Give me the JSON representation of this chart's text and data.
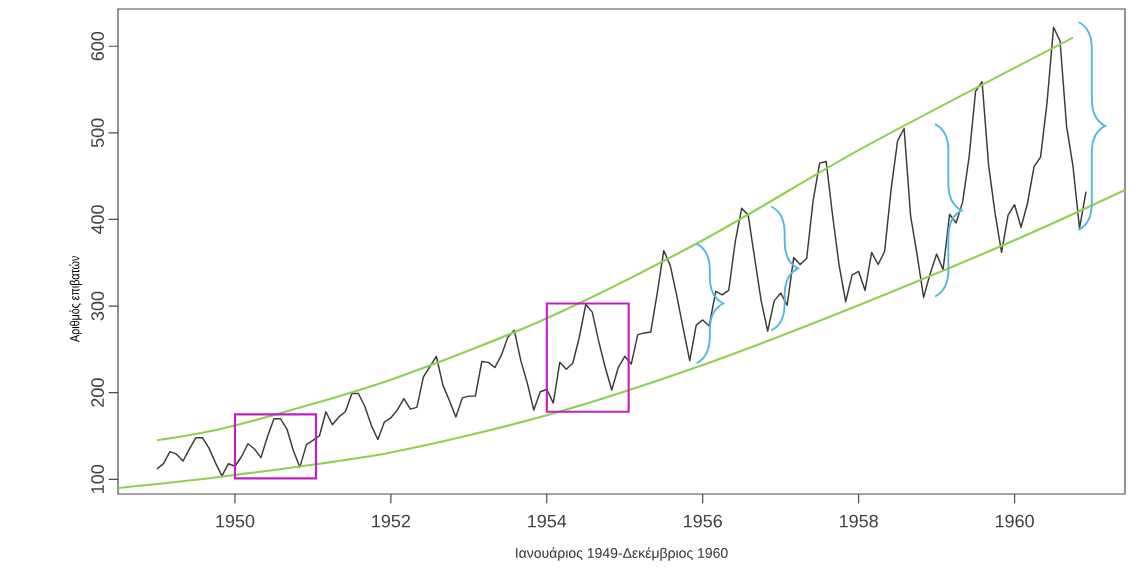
{
  "chart_data": {
    "type": "line",
    "xlabel": "Ιανουάριος 1949-Δεκέμβριος 1960",
    "ylabel": "Αριθμός επιβατών",
    "x": [
      "1949-01",
      "1949-02",
      "1949-03",
      "1949-04",
      "1949-05",
      "1949-06",
      "1949-07",
      "1949-08",
      "1949-09",
      "1949-10",
      "1949-11",
      "1949-12",
      "1950-01",
      "1950-02",
      "1950-03",
      "1950-04",
      "1950-05",
      "1950-06",
      "1950-07",
      "1950-08",
      "1950-09",
      "1950-10",
      "1950-11",
      "1950-12",
      "1951-01",
      "1951-02",
      "1951-03",
      "1951-04",
      "1951-05",
      "1951-06",
      "1951-07",
      "1951-08",
      "1951-09",
      "1951-10",
      "1951-11",
      "1951-12",
      "1952-01",
      "1952-02",
      "1952-03",
      "1952-04",
      "1952-05",
      "1952-06",
      "1952-07",
      "1952-08",
      "1952-09",
      "1952-10",
      "1952-11",
      "1952-12",
      "1953-01",
      "1953-02",
      "1953-03",
      "1953-04",
      "1953-05",
      "1953-06",
      "1953-07",
      "1953-08",
      "1953-09",
      "1953-10",
      "1953-11",
      "1953-12",
      "1954-01",
      "1954-02",
      "1954-03",
      "1954-04",
      "1954-05",
      "1954-06",
      "1954-07",
      "1954-08",
      "1954-09",
      "1954-10",
      "1954-11",
      "1954-12",
      "1955-01",
      "1955-02",
      "1955-03",
      "1955-04",
      "1955-05",
      "1955-06",
      "1955-07",
      "1955-08",
      "1955-09",
      "1955-10",
      "1955-11",
      "1955-12",
      "1956-01",
      "1956-02",
      "1956-03",
      "1956-04",
      "1956-05",
      "1956-06",
      "1956-07",
      "1956-08",
      "1956-09",
      "1956-10",
      "1956-11",
      "1956-12",
      "1957-01",
      "1957-02",
      "1957-03",
      "1957-04",
      "1957-05",
      "1957-06",
      "1957-07",
      "1957-08",
      "1957-09",
      "1957-10",
      "1957-11",
      "1957-12",
      "1958-01",
      "1958-02",
      "1958-03",
      "1958-04",
      "1958-05",
      "1958-06",
      "1958-07",
      "1958-08",
      "1958-09",
      "1958-10",
      "1958-11",
      "1958-12",
      "1959-01",
      "1959-02",
      "1959-03",
      "1959-04",
      "1959-05",
      "1959-06",
      "1959-07",
      "1959-08",
      "1959-09",
      "1959-10",
      "1959-11",
      "1959-12",
      "1960-01",
      "1960-02",
      "1960-03",
      "1960-04",
      "1960-05",
      "1960-06",
      "1960-07",
      "1960-08",
      "1960-09",
      "1960-10",
      "1960-11",
      "1960-12"
    ],
    "series": [
      {
        "color": "#3a3a3a",
        "values": [
          112,
          118,
          132,
          129,
          121,
          135,
          148,
          148,
          136,
          119,
          104,
          118,
          115,
          126,
          141,
          135,
          125,
          149,
          170,
          170,
          158,
          133,
          114,
          140,
          145,
          150,
          178,
          163,
          172,
          178,
          199,
          199,
          184,
          162,
          146,
          166,
          171,
          180,
          193,
          181,
          183,
          218,
          230,
          242,
          209,
          191,
          172,
          194,
          196,
          196,
          236,
          235,
          229,
          243,
          264,
          272,
          237,
          211,
          180,
          201,
          204,
          188,
          235,
          227,
          234,
          264,
          302,
          293,
          259,
          229,
          203,
          229,
          242,
          233,
          267,
          269,
          270,
          315,
          364,
          347,
          312,
          274,
          237,
          278,
          284,
          277,
          317,
          313,
          318,
          374,
          413,
          405,
          355,
          306,
          271,
          306,
          315,
          301,
          356,
          348,
          355,
          422,
          465,
          467,
          404,
          347,
          305,
          336,
          340,
          318,
          362,
          348,
          363,
          435,
          491,
          505,
          404,
          359,
          310,
          337,
          360,
          342,
          406,
          396,
          420,
          472,
          548,
          559,
          463,
          407,
          362,
          405,
          417,
          391,
          419,
          461,
          472,
          535,
          622,
          606,
          508,
          461,
          390,
          432
        ]
      },
      {
        "type": "line",
        "color": "#8fd14f",
        "x": [
          "1949-01",
          "1950-01",
          "1952-01",
          "1954-01",
          "1956-01",
          "1958-01",
          "1960-01",
          "1960-10"
        ],
        "values": [
          145,
          162,
          215,
          286,
          376,
          480,
          575,
          610
        ]
      },
      {
        "type": "line",
        "color": "#8fd14f",
        "x": [
          "1948-07",
          "1950-01",
          "1952-01",
          "1954-01",
          "1956-01",
          "1958-01",
          "1960-01",
          "1961-06"
        ],
        "values": [
          90,
          105,
          131,
          174,
          232,
          301,
          376,
          434
        ]
      }
    ],
    "xlim": [
      "1948-07",
      "1961-06"
    ],
    "ylim": [
      83,
      643
    ],
    "xticks": [
      "1950",
      "1952",
      "1954",
      "1956",
      "1958",
      "1960"
    ],
    "yticks": [
      100,
      200,
      300,
      400,
      500,
      600
    ]
  }
}
